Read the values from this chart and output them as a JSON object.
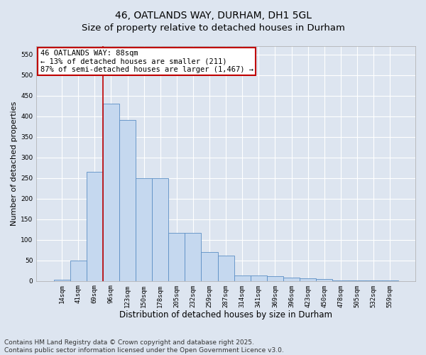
{
  "title": "46, OATLANDS WAY, DURHAM, DH1 5GL",
  "subtitle": "Size of property relative to detached houses in Durham",
  "xlabel": "Distribution of detached houses by size in Durham",
  "ylabel": "Number of detached properties",
  "categories": [
    "14sqm",
    "41sqm",
    "69sqm",
    "96sqm",
    "123sqm",
    "150sqm",
    "178sqm",
    "205sqm",
    "232sqm",
    "259sqm",
    "287sqm",
    "314sqm",
    "341sqm",
    "369sqm",
    "396sqm",
    "423sqm",
    "450sqm",
    "478sqm",
    "505sqm",
    "532sqm",
    "559sqm"
  ],
  "values": [
    3,
    50,
    265,
    430,
    390,
    250,
    250,
    116,
    116,
    70,
    62,
    13,
    13,
    11,
    8,
    7,
    5,
    2,
    2,
    1,
    1
  ],
  "bar_color": "#c5d8ef",
  "bar_edge_color": "#5b8ec4",
  "vline_x_index": 2.5,
  "vline_color": "#c00000",
  "annotation_text": "46 OATLANDS WAY: 88sqm\n← 13% of detached houses are smaller (211)\n87% of semi-detached houses are larger (1,467) →",
  "annotation_box_color": "#ffffff",
  "annotation_box_edge_color": "#c00000",
  "ylim": [
    0,
    570
  ],
  "yticks": [
    0,
    50,
    100,
    150,
    200,
    250,
    300,
    350,
    400,
    450,
    500,
    550
  ],
  "background_color": "#dde5f0",
  "grid_color": "#ffffff",
  "footer_text": "Contains HM Land Registry data © Crown copyright and database right 2025.\nContains public sector information licensed under the Open Government Licence v3.0.",
  "title_fontsize": 10,
  "xlabel_fontsize": 8.5,
  "ylabel_fontsize": 8,
  "tick_fontsize": 6.5,
  "annotation_fontsize": 7.5,
  "footer_fontsize": 6.5
}
